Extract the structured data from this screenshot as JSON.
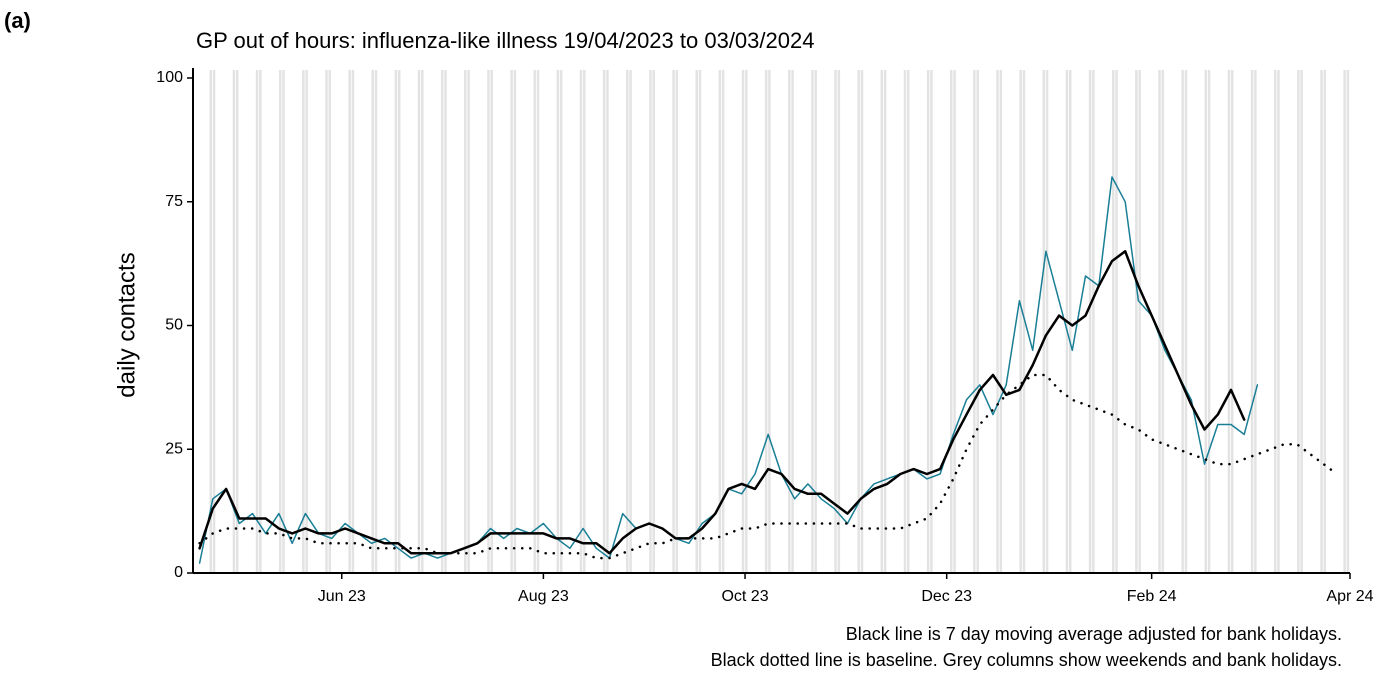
{
  "panel_label": "(a)",
  "chart_data": {
    "type": "line",
    "title": "GP out of hours: influenza-like illness 19/04/2023 to 03/03/2024",
    "y_label": "daily contacts",
    "notes": [
      "Black line is 7 day moving average adjusted for bank holidays.",
      "Black dotted line is baseline. Grey columns show weekends and bank holidays."
    ],
    "x": [
      "2023-04-19",
      "2023-04-23",
      "2023-04-27",
      "2023-05-01",
      "2023-05-05",
      "2023-05-09",
      "2023-05-13",
      "2023-05-17",
      "2023-05-21",
      "2023-05-25",
      "2023-05-29",
      "2023-06-02",
      "2023-06-06",
      "2023-06-10",
      "2023-06-14",
      "2023-06-18",
      "2023-06-22",
      "2023-06-26",
      "2023-06-30",
      "2023-07-04",
      "2023-07-08",
      "2023-07-12",
      "2023-07-16",
      "2023-07-20",
      "2023-07-24",
      "2023-07-28",
      "2023-08-01",
      "2023-08-05",
      "2023-08-09",
      "2023-08-13",
      "2023-08-17",
      "2023-08-21",
      "2023-08-25",
      "2023-08-29",
      "2023-09-02",
      "2023-09-06",
      "2023-09-10",
      "2023-09-14",
      "2023-09-18",
      "2023-09-22",
      "2023-09-26",
      "2023-09-30",
      "2023-10-04",
      "2023-10-08",
      "2023-10-12",
      "2023-10-16",
      "2023-10-20",
      "2023-10-24",
      "2023-10-28",
      "2023-11-01",
      "2023-11-05",
      "2023-11-09",
      "2023-11-13",
      "2023-11-17",
      "2023-11-21",
      "2023-11-25",
      "2023-11-29",
      "2023-12-03",
      "2023-12-07",
      "2023-12-11",
      "2023-12-15",
      "2023-12-19",
      "2023-12-23",
      "2023-12-27",
      "2023-12-31",
      "2024-01-04",
      "2024-01-08",
      "2024-01-12",
      "2024-01-16",
      "2024-01-20",
      "2024-01-24",
      "2024-01-28",
      "2024-02-01",
      "2024-02-05",
      "2024-02-09",
      "2024-02-13",
      "2024-02-17",
      "2024-02-21",
      "2024-02-25",
      "2024-02-29",
      "2024-03-04",
      "2024-03-08",
      "2024-03-12",
      "2024-03-16",
      "2024-03-20",
      "2024-03-24",
      "2024-03-28"
    ],
    "series": [
      {
        "color": "#1a7f96",
        "style": "solid",
        "width": 1.5,
        "values": [
          2,
          15,
          17,
          10,
          12,
          8,
          12,
          6,
          12,
          8,
          7,
          10,
          8,
          6,
          7,
          5,
          3,
          4,
          3,
          4,
          5,
          6,
          9,
          7,
          9,
          8,
          10,
          7,
          5,
          9,
          5,
          3,
          12,
          9,
          10,
          9,
          7,
          6,
          10,
          12,
          17,
          16,
          20,
          28,
          20,
          15,
          18,
          15,
          13,
          10,
          15,
          18,
          19,
          20,
          21,
          19,
          20,
          28,
          35,
          38,
          32,
          38,
          55,
          45,
          65,
          55,
          45,
          60,
          58,
          80,
          75,
          55,
          52,
          45,
          40,
          35,
          22,
          30,
          30,
          28,
          38,
          null,
          null,
          null,
          null,
          null,
          null
        ]
      },
      {
        "color": "#000000",
        "style": "solid",
        "width": 2.5,
        "values": [
          5,
          13,
          17,
          11,
          11,
          11,
          9,
          8,
          9,
          8,
          8,
          9,
          8,
          7,
          6,
          6,
          4,
          4,
          4,
          4,
          5,
          6,
          8,
          8,
          8,
          8,
          8,
          7,
          7,
          6,
          6,
          4,
          7,
          9,
          10,
          9,
          7,
          7,
          9,
          12,
          17,
          18,
          17,
          21,
          20,
          17,
          16,
          16,
          14,
          12,
          15,
          17,
          18,
          20,
          21,
          20,
          21,
          27,
          32,
          37,
          40,
          36,
          37,
          42,
          48,
          52,
          50,
          52,
          58,
          63,
          65,
          58,
          52,
          46,
          40,
          34,
          29,
          32,
          37,
          31,
          null,
          null,
          null,
          null,
          null,
          null,
          null
        ]
      },
      {
        "color": "#000000",
        "style": "dotted",
        "width": 2.5,
        "values": [
          6,
          8,
          9,
          9,
          9,
          8,
          8,
          7,
          7,
          6,
          6,
          6,
          6,
          5,
          5,
          5,
          5,
          5,
          4,
          4,
          4,
          4,
          5,
          5,
          5,
          5,
          4,
          4,
          4,
          4,
          3,
          3,
          4,
          5,
          6,
          6,
          7,
          7,
          7,
          7,
          8,
          9,
          9,
          10,
          10,
          10,
          10,
          10,
          10,
          10,
          9,
          9,
          9,
          9,
          10,
          11,
          14,
          19,
          25,
          30,
          33,
          36,
          38,
          40,
          40,
          37,
          35,
          34,
          33,
          32,
          30,
          29,
          27,
          26,
          25,
          24,
          23,
          22,
          22,
          23,
          24,
          25,
          26,
          26,
          24,
          22,
          20
        ]
      }
    ],
    "xlim": [
      "2023-04-17",
      "2024-04-01"
    ],
    "xticks": [
      {
        "value": "2023-06-01",
        "label": "Jun 23"
      },
      {
        "value": "2023-08-01",
        "label": "Aug 23"
      },
      {
        "value": "2023-10-01",
        "label": "Oct 23"
      },
      {
        "value": "2023-12-01",
        "label": "Dec 23"
      },
      {
        "value": "2024-02-01",
        "label": "Feb 24"
      },
      {
        "value": "2024-04-01",
        "label": "Apr 24"
      }
    ],
    "ylim": [
      0,
      100
    ],
    "yticks": [
      0,
      25,
      50,
      75,
      100
    ],
    "weekend_color": "#e3e3e3",
    "grid": false
  }
}
